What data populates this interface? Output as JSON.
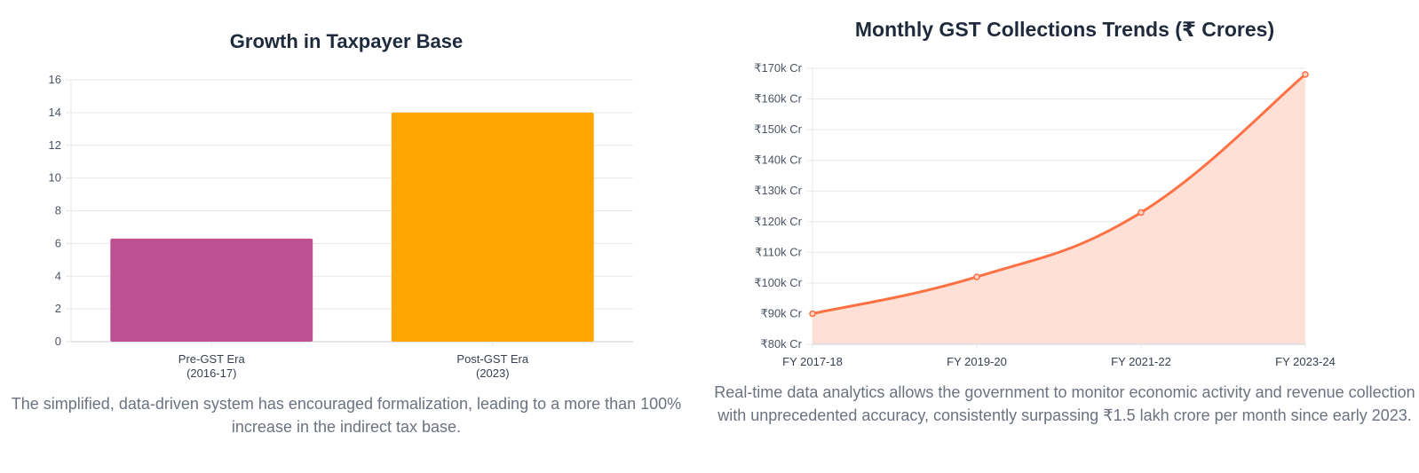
{
  "charts": {
    "taxpayer": {
      "title": "Growth in Taxpayer Base",
      "caption": "The simplified, data-driven system has encouraged formalization, leading to a more than 100% increase in the indirect tax base."
    },
    "gst": {
      "title": "Monthly GST Collections Trends (₹ Crores)",
      "caption": "Real-time data analytics allows the government to monitor economic activity and revenue collection with unprecedented accuracy, consistently surpassing ₹1.5 lakh crore per month since early 2023."
    }
  },
  "chart_data": [
    {
      "type": "bar",
      "title": "Growth in Taxpayer Base",
      "categories": [
        [
          "Pre-GST Era",
          "(2016-17)"
        ],
        [
          "Post-GST Era",
          "(2023)"
        ]
      ],
      "values": [
        6.3,
        14
      ],
      "colors": [
        "#bc5090",
        "#ffa600"
      ],
      "ylim": [
        0,
        16
      ],
      "yticks": [
        0,
        2,
        4,
        6,
        8,
        10,
        12,
        14,
        16
      ],
      "grid": true,
      "legend": "none"
    },
    {
      "type": "area",
      "title": "Monthly GST Collections Trends (₹ Crores)",
      "x": [
        "FY 2017-18",
        "FY 2019-20",
        "FY 2021-22",
        "FY 2023-24"
      ],
      "values": [
        90000,
        102000,
        123000,
        168000
      ],
      "line_color": "#ff7043",
      "fill_color": "#ffe0d6",
      "ylim": [
        80000,
        170000
      ],
      "yticks": [
        80000,
        90000,
        100000,
        110000,
        120000,
        130000,
        140000,
        150000,
        160000,
        170000
      ],
      "ytick_labels": [
        "₹80k Cr",
        "₹90k Cr",
        "₹100k Cr",
        "₹110k Cr",
        "₹120k Cr",
        "₹130k Cr",
        "₹140k Cr",
        "₹150k Cr",
        "₹160k Cr",
        "₹170k Cr"
      ],
      "grid": true,
      "legend": "none"
    }
  ]
}
